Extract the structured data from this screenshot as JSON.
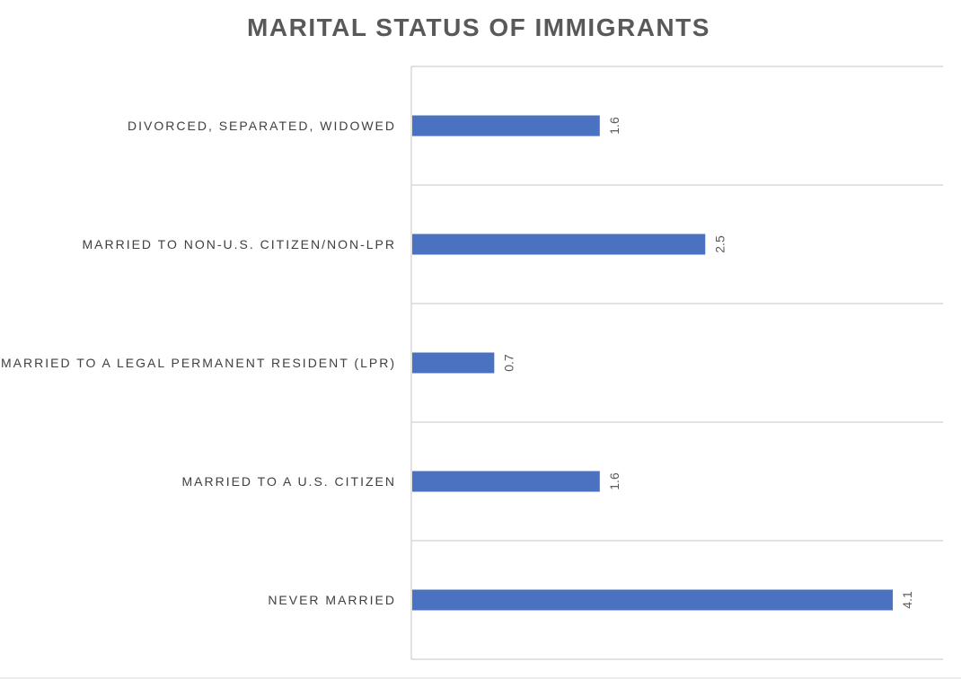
{
  "chart_data": {
    "type": "bar",
    "orientation": "horizontal",
    "title": "MARITAL STATUS OF IMMIGRANTS",
    "categories": [
      "DIVORCED, SEPARATED, WIDOWED",
      "MARRIED TO NON-U.S. CITIZEN/NON-LPR",
      "MARRIED TO A LEGAL PERMANENT RESIDENT (LPR)",
      "MARRIED TO A U.S. CITIZEN",
      "NEVER MARRIED"
    ],
    "values": [
      1.6,
      2.5,
      0.7,
      1.6,
      4.1
    ],
    "data_labels": [
      "1.6",
      "2.5",
      "0.7",
      "1.6",
      "4.1"
    ],
    "xlim": [
      0,
      4.5
    ],
    "bar_color": "#4A72C0",
    "grid": true,
    "legend": "none"
  }
}
